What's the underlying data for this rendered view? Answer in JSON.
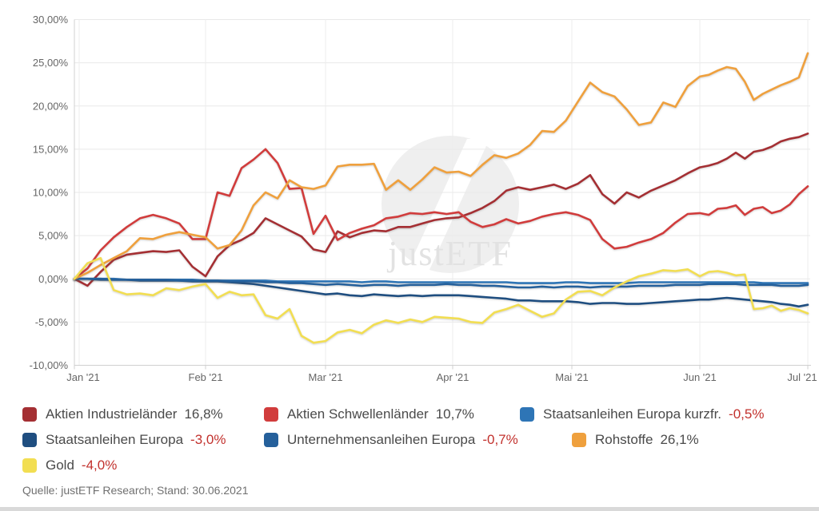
{
  "watermark": {
    "text": "justETF"
  },
  "source": {
    "text": "Quelle: justETF Research; Stand: 30.06.2021"
  },
  "chart_data": {
    "type": "line",
    "title": "",
    "xlabel": "",
    "ylabel": "",
    "ylim": [
      -10,
      30
    ],
    "y_tick_step": 5,
    "y_tick_labels": [
      "30,00%",
      "25,00%",
      "20,00%",
      "15,00%",
      "10,00%",
      "5,00%",
      "0,00%",
      "-5,00%",
      "-10,00%"
    ],
    "x_tick_labels": [
      "Jan '21",
      "Feb '21",
      "Mar '21",
      "Apr '21",
      "Mai '21",
      "Jun '21",
      "Jul '21"
    ],
    "grid": true,
    "legend_position": "bottom",
    "x_unit": "trading-day of 2021 (0 = start of January)",
    "month_tick_days": [
      0,
      20,
      40,
      61,
      81,
      102,
      126
    ],
    "step_days": 2,
    "series": [
      {
        "id": "industrielaender",
        "name": "Aktien Industrieländer",
        "color": "#A42F33",
        "final_label": "16,8%",
        "values": [
          0.0,
          -0.8,
          0.8,
          2.2,
          2.8,
          3.0,
          3.2,
          3.1,
          3.3,
          1.4,
          0.3,
          2.6,
          3.9,
          4.5,
          5.3,
          7.0,
          6.3,
          5.6,
          4.9,
          3.4,
          3.1,
          5.5,
          4.8,
          5.3,
          5.6,
          5.5,
          6.0,
          6.0,
          6.4,
          6.8,
          7.0,
          7.1,
          7.6,
          8.2,
          9.0,
          10.2,
          10.6,
          10.3,
          10.6,
          10.9,
          10.4,
          11.0,
          12.0,
          9.8,
          8.7,
          10.0,
          9.4,
          10.2,
          10.8,
          11.4,
          12.2,
          12.9,
          13.1,
          13.4,
          13.9,
          14.6,
          13.9,
          14.7,
          14.9,
          15.3,
          15.9,
          16.2,
          16.4,
          16.8
        ]
      },
      {
        "id": "schwellenlaender",
        "name": "Aktien Schwellenländer",
        "color": "#D13C3C",
        "final_label": "10,7%",
        "values": [
          0.0,
          1.2,
          3.3,
          4.8,
          6.0,
          7.0,
          7.4,
          7.0,
          6.4,
          4.6,
          4.6,
          10.0,
          9.6,
          12.8,
          13.8,
          15.0,
          13.4,
          10.4,
          10.5,
          5.2,
          7.3,
          4.5,
          5.3,
          5.8,
          6.2,
          7.0,
          7.2,
          7.6,
          7.5,
          7.7,
          7.5,
          7.7,
          6.6,
          6.0,
          6.3,
          6.9,
          6.4,
          6.7,
          7.2,
          7.5,
          7.7,
          7.4,
          6.8,
          4.6,
          3.5,
          3.7,
          4.2,
          4.6,
          5.3,
          6.5,
          7.5,
          7.6,
          7.4,
          8.1,
          8.2,
          8.5,
          7.4,
          8.1,
          8.3,
          7.6,
          7.9,
          8.6,
          9.8,
          10.7
        ]
      },
      {
        "id": "kurzfristig",
        "name": "Staatsanleihen Europa kurzfr.",
        "color": "#2E75B6",
        "final_label": "-0,5%",
        "values": [
          0.0,
          0.0,
          0.0,
          0.0,
          -0.1,
          -0.1,
          -0.1,
          -0.1,
          -0.1,
          -0.1,
          -0.2,
          -0.2,
          -0.2,
          -0.2,
          -0.2,
          -0.2,
          -0.3,
          -0.3,
          -0.3,
          -0.3,
          -0.3,
          -0.3,
          -0.3,
          -0.4,
          -0.3,
          -0.3,
          -0.4,
          -0.4,
          -0.4,
          -0.4,
          -0.4,
          -0.4,
          -0.4,
          -0.4,
          -0.4,
          -0.4,
          -0.5,
          -0.5,
          -0.5,
          -0.5,
          -0.4,
          -0.4,
          -0.5,
          -0.5,
          -0.5,
          -0.5,
          -0.4,
          -0.4,
          -0.4,
          -0.4,
          -0.4,
          -0.4,
          -0.4,
          -0.4,
          -0.4,
          -0.4,
          -0.4,
          -0.4,
          -0.5,
          -0.5,
          -0.5,
          -0.5,
          -0.5,
          -0.5
        ]
      },
      {
        "id": "staatsanleihen",
        "name": "Staatsanleihen Europa",
        "color": "#1F4E80",
        "final_label": "-3,0%",
        "values": [
          0.0,
          0.0,
          -0.1,
          -0.1,
          -0.1,
          -0.2,
          -0.2,
          -0.2,
          -0.2,
          -0.3,
          -0.3,
          -0.3,
          -0.4,
          -0.5,
          -0.6,
          -0.8,
          -1.0,
          -1.2,
          -1.4,
          -1.6,
          -1.8,
          -1.7,
          -1.9,
          -2.0,
          -1.8,
          -1.9,
          -2.0,
          -1.9,
          -2.0,
          -1.9,
          -1.9,
          -1.9,
          -2.0,
          -2.1,
          -2.2,
          -2.3,
          -2.5,
          -2.5,
          -2.6,
          -2.6,
          -2.6,
          -2.7,
          -2.9,
          -2.8,
          -2.8,
          -2.9,
          -2.9,
          -2.8,
          -2.7,
          -2.6,
          -2.5,
          -2.4,
          -2.4,
          -2.3,
          -2.2,
          -2.3,
          -2.4,
          -2.5,
          -2.6,
          -2.7,
          -2.9,
          -3.0,
          -3.2,
          -3.0
        ]
      },
      {
        "id": "unternehmensanleihen",
        "name": "Unternehmensanleihen Europa",
        "color": "#25609B",
        "final_label": "-0,7%",
        "values": [
          0.0,
          0.0,
          0.0,
          -0.1,
          -0.1,
          -0.1,
          -0.1,
          -0.1,
          -0.2,
          -0.2,
          -0.2,
          -0.2,
          -0.3,
          -0.3,
          -0.3,
          -0.4,
          -0.4,
          -0.5,
          -0.5,
          -0.6,
          -0.7,
          -0.6,
          -0.7,
          -0.8,
          -0.7,
          -0.7,
          -0.8,
          -0.7,
          -0.7,
          -0.7,
          -0.6,
          -0.7,
          -0.7,
          -0.8,
          -0.8,
          -0.9,
          -1.0,
          -1.0,
          -0.9,
          -1.0,
          -0.9,
          -0.9,
          -1.0,
          -0.9,
          -0.9,
          -0.9,
          -0.8,
          -0.8,
          -0.8,
          -0.7,
          -0.7,
          -0.7,
          -0.6,
          -0.6,
          -0.6,
          -0.6,
          -0.7,
          -0.7,
          -0.7,
          -0.7,
          -0.8,
          -0.8,
          -0.8,
          -0.7
        ]
      },
      {
        "id": "rohstoffe",
        "name": "Rohstoffe",
        "color": "#EFA03D",
        "final_label": "26,1%",
        "values": [
          0.0,
          0.7,
          1.6,
          2.4,
          3.2,
          4.7,
          4.6,
          5.1,
          5.4,
          5.1,
          4.8,
          3.5,
          3.9,
          5.6,
          8.5,
          10.0,
          9.3,
          11.4,
          10.6,
          10.4,
          10.8,
          13.0,
          13.2,
          13.2,
          13.3,
          10.3,
          11.4,
          10.3,
          11.5,
          12.9,
          12.3,
          12.4,
          11.9,
          13.2,
          14.3,
          14.0,
          14.5,
          15.5,
          17.1,
          17.0,
          18.3,
          20.5,
          22.7,
          21.6,
          21.1,
          19.6,
          17.8,
          18.1,
          20.4,
          19.9,
          22.3,
          23.4,
          23.6,
          24.1,
          24.5,
          24.3,
          22.8,
          20.7,
          21.4,
          21.9,
          22.4,
          22.8,
          23.3,
          26.1
        ]
      },
      {
        "id": "gold",
        "name": "Gold",
        "color": "#F2DE52",
        "final_label": "-4,0%",
        "values": [
          0.0,
          1.8,
          2.4,
          -1.3,
          -1.8,
          -1.7,
          -1.9,
          -1.1,
          -1.3,
          -0.9,
          -0.6,
          -2.2,
          -1.5,
          -1.9,
          -1.8,
          -4.2,
          -4.6,
          -3.5,
          -6.6,
          -7.4,
          -7.2,
          -6.2,
          -5.9,
          -6.3,
          -5.3,
          -4.8,
          -5.1,
          -4.7,
          -5.0,
          -4.4,
          -4.5,
          -4.6,
          -5.0,
          -5.1,
          -3.9,
          -3.5,
          -3.0,
          -3.7,
          -4.4,
          -4.0,
          -2.4,
          -1.5,
          -1.4,
          -1.9,
          -1.0,
          -0.3,
          0.3,
          0.6,
          1.0,
          0.9,
          1.1,
          0.3,
          0.8,
          0.9,
          0.7,
          0.4,
          0.5,
          -3.5,
          -3.4,
          -3.1,
          -3.7,
          -3.4,
          -3.6,
          -4.0
        ]
      }
    ]
  },
  "legend": {
    "rows": [
      {
        "items": [
          {
            "series_id": "industrielaender",
            "label": "Aktien Industrieländer",
            "value": "16,8%"
          },
          {
            "series_id": "schwellenlaender",
            "label": "Aktien Schwellenländer",
            "value": "10,7%"
          },
          {
            "series_id": "kurzfristig",
            "label": "Staatsanleihen Europa kurzfr.",
            "value": "-0,5%"
          }
        ]
      },
      {
        "items": [
          {
            "series_id": "staatsanleihen",
            "label": "Staatsanleihen Europa",
            "value": "-3,0%"
          },
          {
            "series_id": "unternehmensanleihen",
            "label": "Unternehmensanleihen Europa",
            "value": "-0,7%"
          },
          {
            "series_id": "rohstoffe",
            "label": "Rohstoffe",
            "value": "26,1%"
          }
        ]
      },
      {
        "items": [
          {
            "series_id": "gold",
            "label": "Gold",
            "value": "-4,0%"
          }
        ]
      }
    ]
  }
}
